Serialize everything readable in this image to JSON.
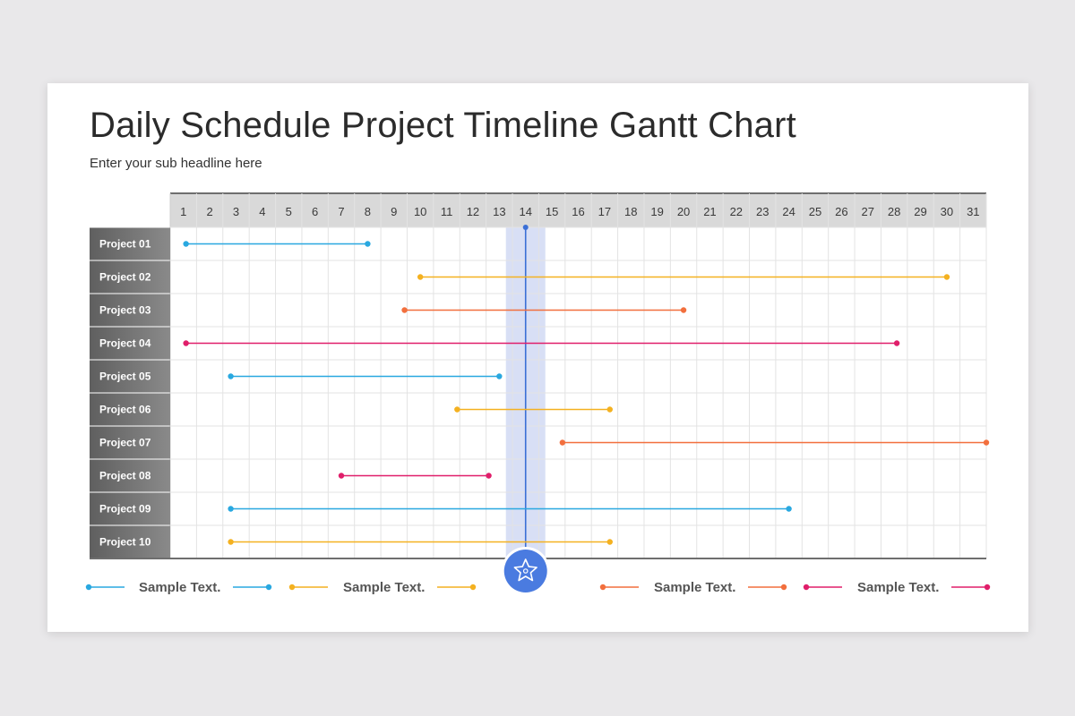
{
  "page": {
    "title": "Daily Schedule Project Timeline Gantt Chart",
    "subtitle": "Enter your sub headline here"
  },
  "chart_data": {
    "type": "gantt",
    "days": [
      1,
      2,
      3,
      4,
      5,
      6,
      7,
      8,
      9,
      10,
      11,
      12,
      13,
      14,
      15,
      16,
      17,
      18,
      19,
      20,
      21,
      22,
      23,
      24,
      25,
      26,
      27,
      28,
      29,
      30,
      31
    ],
    "highlight_day": 14,
    "highlight_icon": "starfish-icon",
    "grid": true,
    "tasks": [
      {
        "label": "Project 01",
        "start": 1.1,
        "end": 8.0,
        "color": "#29a8e0"
      },
      {
        "label": "Project 02",
        "start": 10.0,
        "end": 30.0,
        "color": "#f4b120"
      },
      {
        "label": "Project 03",
        "start": 9.4,
        "end": 20.0,
        "color": "#f26f3d"
      },
      {
        "label": "Project 04",
        "start": 1.1,
        "end": 28.1,
        "color": "#e01e6a"
      },
      {
        "label": "Project 05",
        "start": 2.8,
        "end": 13.0,
        "color": "#29a8e0"
      },
      {
        "label": "Project 06",
        "start": 11.4,
        "end": 17.2,
        "color": "#f4b120"
      },
      {
        "label": "Project 07",
        "start": 15.4,
        "end": 31.5,
        "color": "#f26f3d"
      },
      {
        "label": "Project 08",
        "start": 7.0,
        "end": 12.6,
        "color": "#e01e6a"
      },
      {
        "label": "Project 09",
        "start": 2.8,
        "end": 24.0,
        "color": "#29a8e0"
      },
      {
        "label": "Project 10",
        "start": 2.8,
        "end": 17.2,
        "color": "#f4b120"
      }
    ],
    "legend": [
      {
        "label": "Sample Text.",
        "color": "#29a8e0"
      },
      {
        "label": "Sample Text.",
        "color": "#f4b120"
      },
      {
        "label": "Sample Text.",
        "color": "#f26f3d"
      },
      {
        "label": "Sample Text.",
        "color": "#e01e6a"
      }
    ],
    "colors": {
      "label_bg": "#6d6d6d",
      "header_bg": "#d9d9d9",
      "highlight_band": "#d8dff5",
      "highlight_line": "#3a6fd6",
      "highlight_circle": "#4a7be0"
    }
  }
}
